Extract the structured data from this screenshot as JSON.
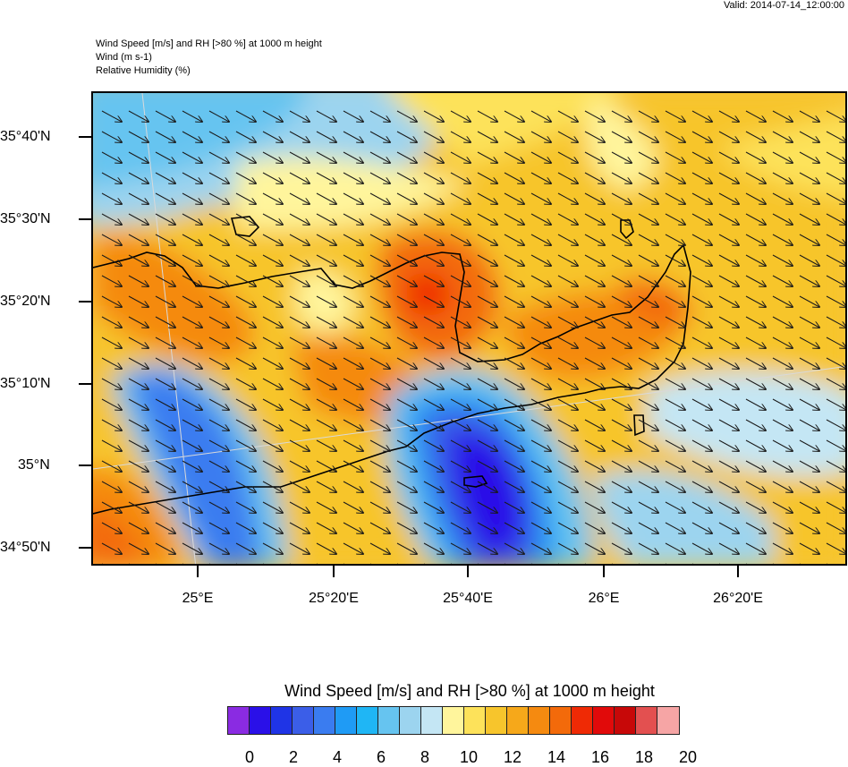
{
  "valid_label": "Valid: 2014-07-14_12:00:00",
  "header": {
    "line1": "Wind Speed [m/s] and RH [>80 %] at 1000 m height",
    "line2": "Wind   (m s-1)",
    "line3": "Relative Humidity   (%)"
  },
  "latitude_labels": [
    "35°40'N",
    "35°30'N",
    "35°20'N",
    "35°10'N",
    "35°N",
    "34°50'N"
  ],
  "longitude_labels": [
    "25°E",
    "25°20'E",
    "25°40'E",
    "26°E",
    "26°20'E"
  ],
  "legend": {
    "title": "Wind Speed [m/s] and RH [>80 %] at 1000 m height",
    "labels": [
      "0",
      "2",
      "4",
      "6",
      "8",
      "10",
      "12",
      "14",
      "16",
      "18",
      "20"
    ],
    "colors": [
      "#8a2be2",
      "#2a10e8",
      "#1f34e6",
      "#3b5ee8",
      "#3a7cf0",
      "#1f9bf5",
      "#1fb6f5",
      "#66c4f0",
      "#9cd4ef",
      "#c4e6f4",
      "#fff59c",
      "#fde25a",
      "#f7c52c",
      "#f6a81a",
      "#f58a10",
      "#f36a0a",
      "#ef2a05",
      "#e10a0a",
      "#c70808",
      "#e35050",
      "#f6a5a5"
    ]
  },
  "colors": {
    "frame": "#000000",
    "coastline": "#000000",
    "wind_arrow": "#1a1a1a"
  }
}
